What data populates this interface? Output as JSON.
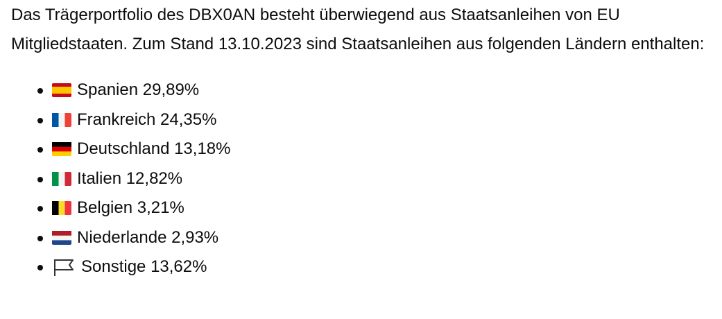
{
  "paragraph": "Das Trägerportfolio des DBX0AN besteht überwiegend aus Staatsanleihen von EU Mitgliedstaaten. Zum Stand 13.10.2023 sind Staatsanleihen aus folgenden Ländern enthalten:",
  "list": [
    "Spanien 29,89%",
    "Frankreich 24,35%",
    "Deutschland 13,18%",
    "Italien 12,82%",
    "Belgien 3,21%",
    "Niederlande 2,93%",
    "Sonstige 13,62%"
  ]
}
